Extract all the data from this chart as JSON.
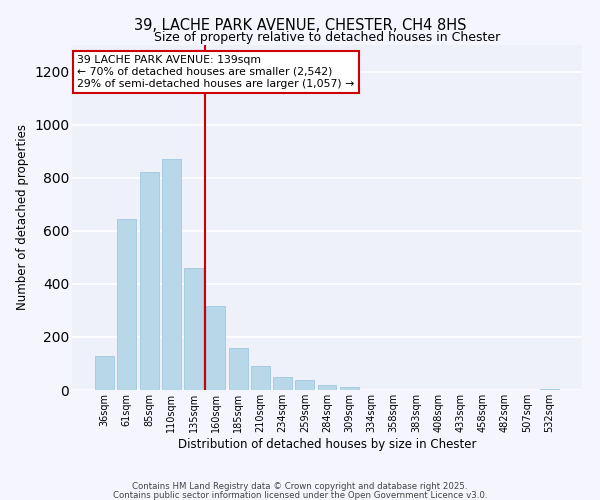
{
  "title": "39, LACHE PARK AVENUE, CHESTER, CH4 8HS",
  "subtitle": "Size of property relative to detached houses in Chester",
  "xlabel": "Distribution of detached houses by size in Chester",
  "ylabel": "Number of detached properties",
  "bar_color": "#b8d8ea",
  "bar_edge_color": "#a0c8e0",
  "fig_bg_color": "#f5f5ff",
  "ax_bg_color": "#eef0fa",
  "categories": [
    "36sqm",
    "61sqm",
    "85sqm",
    "110sqm",
    "135sqm",
    "160sqm",
    "185sqm",
    "210sqm",
    "234sqm",
    "259sqm",
    "284sqm",
    "309sqm",
    "334sqm",
    "358sqm",
    "383sqm",
    "408sqm",
    "433sqm",
    "458sqm",
    "482sqm",
    "507sqm",
    "532sqm"
  ],
  "values": [
    130,
    645,
    820,
    870,
    460,
    315,
    158,
    90,
    48,
    38,
    20,
    12,
    0,
    0,
    0,
    0,
    0,
    0,
    0,
    0,
    2
  ],
  "vline_x": 4.5,
  "vline_color": "#cc0000",
  "ylim": [
    0,
    1300
  ],
  "yticks": [
    0,
    200,
    400,
    600,
    800,
    1000,
    1200
  ],
  "annotation_title": "39 LACHE PARK AVENUE: 139sqm",
  "annotation_line1": "← 70% of detached houses are smaller (2,542)",
  "annotation_line2": "29% of semi-detached houses are larger (1,057) →",
  "footnote1": "Contains HM Land Registry data © Crown copyright and database right 2025.",
  "footnote2": "Contains public sector information licensed under the Open Government Licence v3.0."
}
